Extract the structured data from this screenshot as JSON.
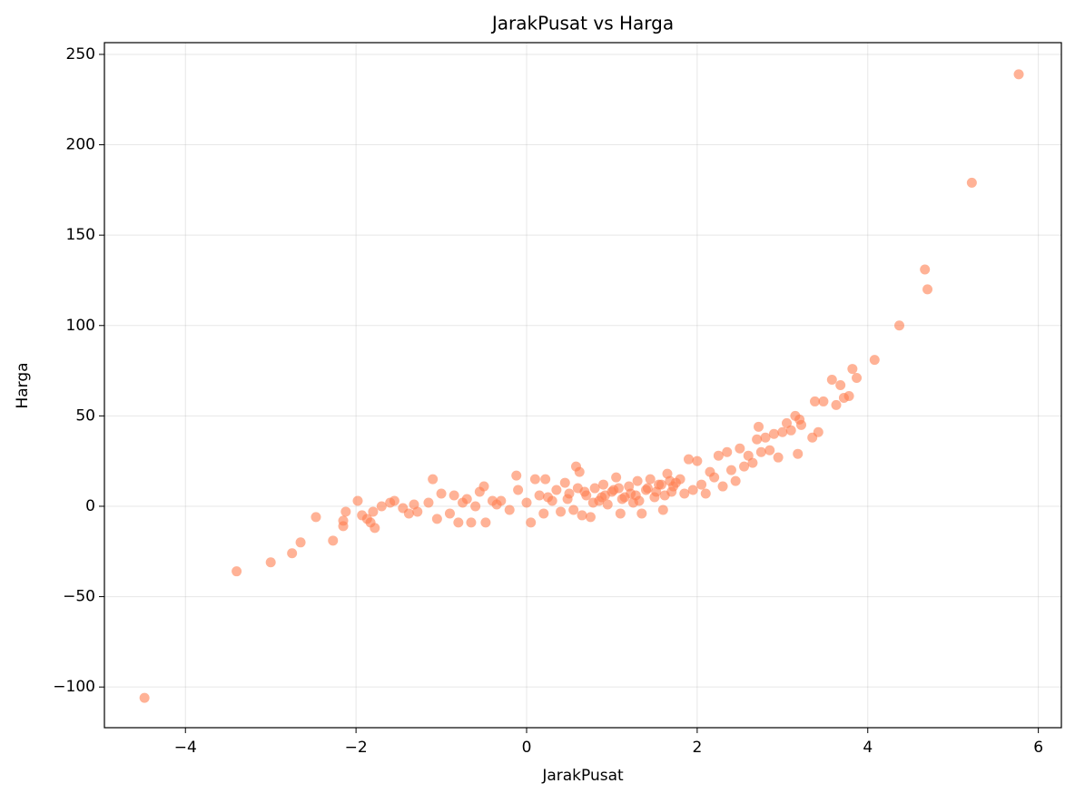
{
  "chart_data": {
    "type": "scatter",
    "title": "JarakPusat vs Harga",
    "x_label": "JarakPusat",
    "y_label": "Harga",
    "color": "#ff7f50",
    "grid": true,
    "xlim": [
      -4.95,
      6.27
    ],
    "ylim": [
      -122.5,
      256.5
    ],
    "xticks": [
      {
        "value": -4,
        "label": "−4"
      },
      {
        "value": -2,
        "label": "−2"
      },
      0,
      2,
      4,
      6
    ],
    "yticks": [
      {
        "value": -100,
        "label": "−100"
      },
      {
        "value": -50,
        "label": "−50"
      },
      0,
      50,
      100,
      150,
      200,
      250
    ],
    "x": [
      -4.48,
      -3.4,
      -3.0,
      -2.75,
      -2.65,
      -2.47,
      -2.27,
      -2.15,
      -2.15,
      -2.12,
      -1.98,
      -1.93,
      -1.87,
      -1.83,
      -1.8,
      -1.78,
      -1.7,
      -1.6,
      -1.55,
      -1.45,
      -1.38,
      -1.32,
      -1.28,
      -1.15,
      -1.1,
      -1.05,
      -1.0,
      -0.9,
      -0.85,
      -0.8,
      -0.75,
      -0.7,
      -0.65,
      -0.6,
      -0.55,
      -0.5,
      -0.48,
      -0.4,
      -0.3,
      -0.2,
      -0.12,
      -0.1,
      0.0,
      0.05,
      0.1,
      0.15,
      0.2,
      0.22,
      0.3,
      0.35,
      0.4,
      0.45,
      0.5,
      0.55,
      0.58,
      0.62,
      0.65,
      0.7,
      0.75,
      0.8,
      0.85,
      0.9,
      0.95,
      1.0,
      1.05,
      1.1,
      1.15,
      1.2,
      1.25,
      1.3,
      1.35,
      1.4,
      1.45,
      1.5,
      1.55,
      1.6,
      1.65,
      1.7,
      1.75,
      1.8,
      1.85,
      1.9,
      1.95,
      2.0,
      2.05,
      2.1,
      2.15,
      2.2,
      2.25,
      2.3,
      2.35,
      2.4,
      2.45,
      2.5,
      2.55,
      2.6,
      2.65,
      2.7,
      2.72,
      2.75,
      2.8,
      2.85,
      2.9,
      2.95,
      3.0,
      3.05,
      3.1,
      3.15,
      3.18,
      3.2,
      3.22,
      3.35,
      3.38,
      3.42,
      3.48,
      3.58,
      3.63,
      3.68,
      3.72,
      3.78,
      3.82,
      3.87,
      4.08,
      4.37,
      4.67,
      4.7,
      5.22,
      5.77,
      -0.35,
      0.25,
      0.6,
      0.78,
      0.92,
      1.02,
      1.12,
      1.22,
      1.32,
      1.42,
      1.52,
      1.58,
      1.62,
      1.68,
      1.72,
      0.48,
      0.68,
      0.88,
      1.08,
      1.28
    ],
    "y": [
      -106,
      -36,
      -31,
      -26,
      -20,
      -6,
      -19,
      -11,
      -8,
      -3,
      3,
      -5,
      -7,
      -9,
      -3,
      -12,
      0,
      2,
      3,
      -1,
      -4,
      1,
      -3,
      2,
      15,
      -7,
      7,
      -4,
      6,
      -9,
      2,
      4,
      -9,
      0,
      8,
      11,
      -9,
      3,
      3,
      -2,
      17,
      9,
      2,
      -9,
      15,
      6,
      -4,
      15,
      3,
      9,
      -3,
      13,
      7,
      -2,
      22,
      19,
      -5,
      6,
      -6,
      10,
      3,
      12,
      1,
      8,
      16,
      -4,
      5,
      11,
      2,
      14,
      -4,
      9,
      15,
      5,
      12,
      -2,
      18,
      8,
      13,
      15,
      7,
      26,
      9,
      25,
      12,
      7,
      19,
      16,
      28,
      11,
      30,
      20,
      14,
      32,
      22,
      28,
      24,
      37,
      44,
      30,
      38,
      31,
      40,
      27,
      41,
      46,
      42,
      50,
      29,
      48,
      45,
      38,
      58,
      41,
      58,
      70,
      56,
      67,
      60,
      61,
      76,
      71,
      81,
      100,
      131,
      120,
      179,
      239,
      1,
      5,
      10,
      2,
      6,
      9,
      4,
      7,
      3,
      10,
      8,
      12,
      6,
      14,
      11,
      4,
      8,
      5,
      10,
      6
    ]
  }
}
